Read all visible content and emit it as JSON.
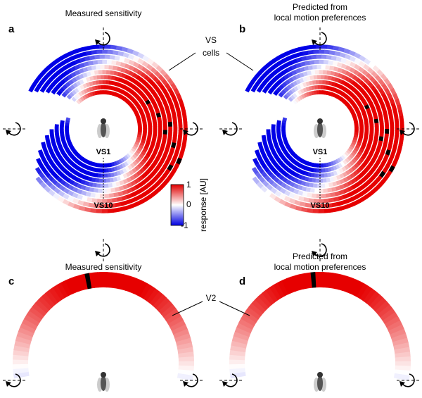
{
  "panels": [
    {
      "label": "a",
      "title": [
        "Measured sensitivity"
      ]
    },
    {
      "label": "b",
      "title": [
        "Predicted from",
        "local motion preferences"
      ]
    },
    {
      "label": "c",
      "title": [
        "Measured sensitivity"
      ]
    },
    {
      "label": "d",
      "title": [
        "Predicted from",
        "local motion preferences"
      ]
    }
  ],
  "annotations": {
    "vs_cells": [
      "VS",
      "cells"
    ],
    "vs1": "VS1",
    "vs10": "VS10",
    "v2": "V2"
  },
  "colorbar": {
    "label": "response [AU]",
    "ticks": [
      1,
      0,
      -1
    ]
  }
}
